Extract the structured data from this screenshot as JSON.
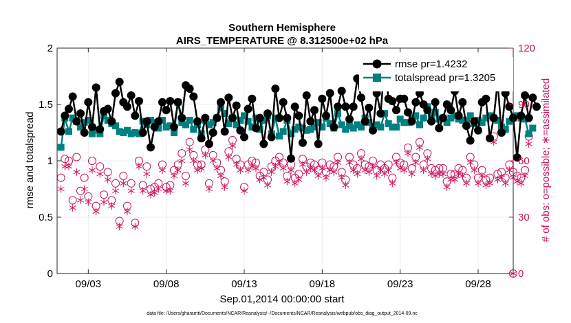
{
  "chart_data": {
    "type": "line",
    "title_line1": "Southern Hemisphere",
    "title_line2": "AIRS_TEMPERATURE @ 8.312500e+02 hPa",
    "xlabel": "Sep.01,2014 00:00:00 start",
    "ylabel_left": "rmse and totalspread",
    "ylabel_right": "# of obs: o=possible; ∗=assimilated",
    "footer": "data file: /Users/gharamti/Documents/NCAR/Reanalysis/~/Documents/NCAR/Reanalysis/webpub/obs_diag_output_2014-09.nc",
    "xlim": [
      1,
      30.25
    ],
    "ylim_left": [
      0,
      2
    ],
    "ylim_right": [
      0,
      120
    ],
    "x_ticks": [
      3,
      8,
      13,
      18,
      23,
      28
    ],
    "x_tick_labels": [
      "09/03",
      "09/08",
      "09/13",
      "09/18",
      "09/23",
      "09/28"
    ],
    "y_ticks_left": [
      0,
      0.5,
      1,
      1.5,
      2
    ],
    "y_tick_labels_left": [
      "0",
      "0.5",
      "1",
      "1.5",
      "2"
    ],
    "y_ticks_right": [
      0,
      30,
      60,
      90,
      120
    ],
    "y_tick_labels_right": [
      "0",
      "30",
      "60",
      "90",
      "120"
    ],
    "x_start": 1.25,
    "x_step": 0.25,
    "colors": {
      "rmse": "#000000",
      "spread": "#008080",
      "obs": "#cc0f5b",
      "grid": "#ececec",
      "plot_bg": "#ffffff"
    },
    "legend_location": "top-right",
    "series": [
      {
        "name": "rmse pr=1.4232",
        "key": "rmse",
        "values": [
          1.26,
          1.4,
          1.46,
          1.57,
          1.35,
          1.42,
          1.25,
          1.52,
          1.3,
          1.65,
          1.28,
          1.44,
          1.46,
          1.35,
          1.6,
          1.7,
          1.52,
          1.48,
          1.58,
          1.4,
          1.53,
          1.25,
          1.35,
          1.12,
          1.3,
          1.35,
          1.52,
          1.45,
          1.53,
          1.3,
          1.52,
          1.38,
          1.67,
          1.64,
          1.57,
          1.35,
          1.2,
          1.38,
          1.15,
          1.25,
          1.38,
          1.52,
          1.26,
          1.56,
          1.38,
          1.49,
          1.27,
          1.21,
          1.46,
          1.55,
          1.29,
          1.38,
          1.15,
          1.42,
          1.21,
          1.64,
          1.38,
          1.52,
          1.38,
          1.02,
          1.48,
          1.4,
          1.16,
          1.58,
          1.35,
          1.45,
          1.15,
          1.55,
          1.4,
          1.6,
          1.3,
          1.48,
          1.62,
          1.48,
          1.37,
          1.48,
          1.73,
          1.56,
          1.35,
          1.47,
          1.27,
          1.6,
          1.42,
          1.87,
          1.55,
          1.53,
          1.45,
          1.55,
          1.55,
          1.43,
          1.35,
          1.52,
          1.6,
          1.5,
          1.45,
          1.35,
          1.52,
          1.29,
          1.38,
          1.5,
          1.45,
          1.62,
          1.4,
          1.52,
          1.31,
          1.18,
          1.35,
          1.27,
          1.52,
          1.55,
          1.2,
          1.38,
          1.7,
          1.25,
          1.6,
          1.48,
          1.38,
          1.03,
          1.4,
          1.58,
          1.38,
          1.56,
          1.48
        ]
      },
      {
        "name": "totalspread pr=1.3205",
        "key": "spread",
        "values": [
          1.12,
          1.38,
          1.26,
          1.38,
          1.35,
          1.3,
          1.34,
          1.36,
          1.24,
          1.27,
          1.24,
          1.4,
          1.36,
          1.33,
          1.31,
          1.26,
          1.25,
          1.27,
          1.24,
          1.25,
          1.24,
          1.35,
          1.32,
          1.36,
          1.34,
          1.29,
          1.36,
          1.3,
          1.31,
          1.25,
          1.52,
          1.34,
          1.32,
          1.36,
          1.28,
          1.32,
          1.24,
          1.36,
          1.32,
          1.34,
          1.38,
          1.47,
          1.42,
          1.33,
          1.38,
          1.32,
          1.36,
          1.4,
          1.35,
          1.3,
          1.38,
          1.28,
          1.36,
          1.4,
          1.24,
          1.38,
          1.22,
          1.26,
          1.36,
          1.24,
          1.28,
          1.3,
          1.29,
          1.27,
          1.28,
          1.3,
          1.34,
          1.3,
          1.38,
          1.33,
          1.29,
          1.42,
          1.32,
          1.28,
          1.31,
          1.29,
          1.32,
          1.3,
          1.38,
          1.34,
          1.3,
          1.32,
          1.3,
          1.42,
          1.33,
          1.3,
          1.3,
          1.37,
          1.34,
          1.34,
          1.38,
          1.4,
          1.32,
          1.38,
          1.48,
          1.4,
          1.43,
          1.37,
          1.38,
          1.34,
          1.38,
          1.4,
          1.37,
          1.36,
          1.36,
          1.4,
          1.33,
          1.36,
          1.34,
          1.38,
          1.4,
          1.38,
          1.36,
          1.3,
          1.28,
          1.35,
          1.38,
          1.4,
          1.38,
          1.37,
          1.24,
          1.29
        ]
      },
      {
        "name": "possible",
        "key": "possible",
        "values": [
          51,
          61,
          60,
          39,
          62,
          44,
          51,
          41,
          60,
          36,
          57,
          42,
          54,
          39,
          48,
          28,
          52,
          36,
          48,
          27,
          60,
          47,
          57,
          45,
          46,
          48,
          58,
          46,
          47,
          55,
          58,
          64,
          52,
          70,
          63,
          58,
          58,
          66,
          48,
          63,
          59,
          55,
          49,
          65,
          71,
          61,
          58,
          46,
          58,
          60,
          59,
          52,
          54,
          50,
          57,
          60,
          62,
          59,
          52,
          58,
          51,
          53,
          61,
          57,
          59,
          58,
          55,
          59,
          54,
          58,
          57,
          62,
          54,
          50,
          62,
          58,
          56,
          64,
          58,
          57,
          60,
          55,
          58,
          56,
          58,
          51,
          62,
          59,
          58,
          67,
          56,
          62,
          70,
          58,
          64,
          56,
          55,
          56,
          56,
          49,
          53,
          53,
          56,
          55,
          51,
          62,
          58,
          51,
          55,
          50,
          51,
          73,
          53,
          54,
          51,
          58,
          54,
          52,
          51,
          55,
          73
        ]
      },
      {
        "name": "assimilated",
        "key": "assimilated",
        "values": [
          45,
          57,
          57,
          35,
          54,
          39,
          45,
          38,
          55,
          33,
          53,
          38,
          50,
          36,
          44,
          25,
          48,
          33,
          44,
          25,
          57,
          44,
          53,
          42,
          43,
          45,
          55,
          44,
          44,
          52,
          55,
          60,
          48,
          66,
          60,
          55,
          56,
          63,
          45,
          60,
          56,
          52,
          46,
          62,
          68,
          58,
          55,
          44,
          55,
          57,
          56,
          50,
          51,
          47,
          54,
          57,
          59,
          56,
          49,
          55,
          48,
          50,
          58,
          54,
          56,
          55,
          52,
          56,
          51,
          55,
          54,
          59,
          51,
          47,
          59,
          55,
          53,
          61,
          55,
          54,
          57,
          52,
          55,
          53,
          55,
          48,
          59,
          56,
          55,
          64,
          53,
          59,
          67,
          55,
          61,
          53,
          52,
          53,
          53,
          46,
          50,
          50,
          53,
          52,
          48,
          59,
          55,
          48,
          52,
          47,
          48,
          70,
          50,
          51,
          48,
          55,
          51,
          49,
          48,
          52,
          69
        ]
      }
    ]
  }
}
